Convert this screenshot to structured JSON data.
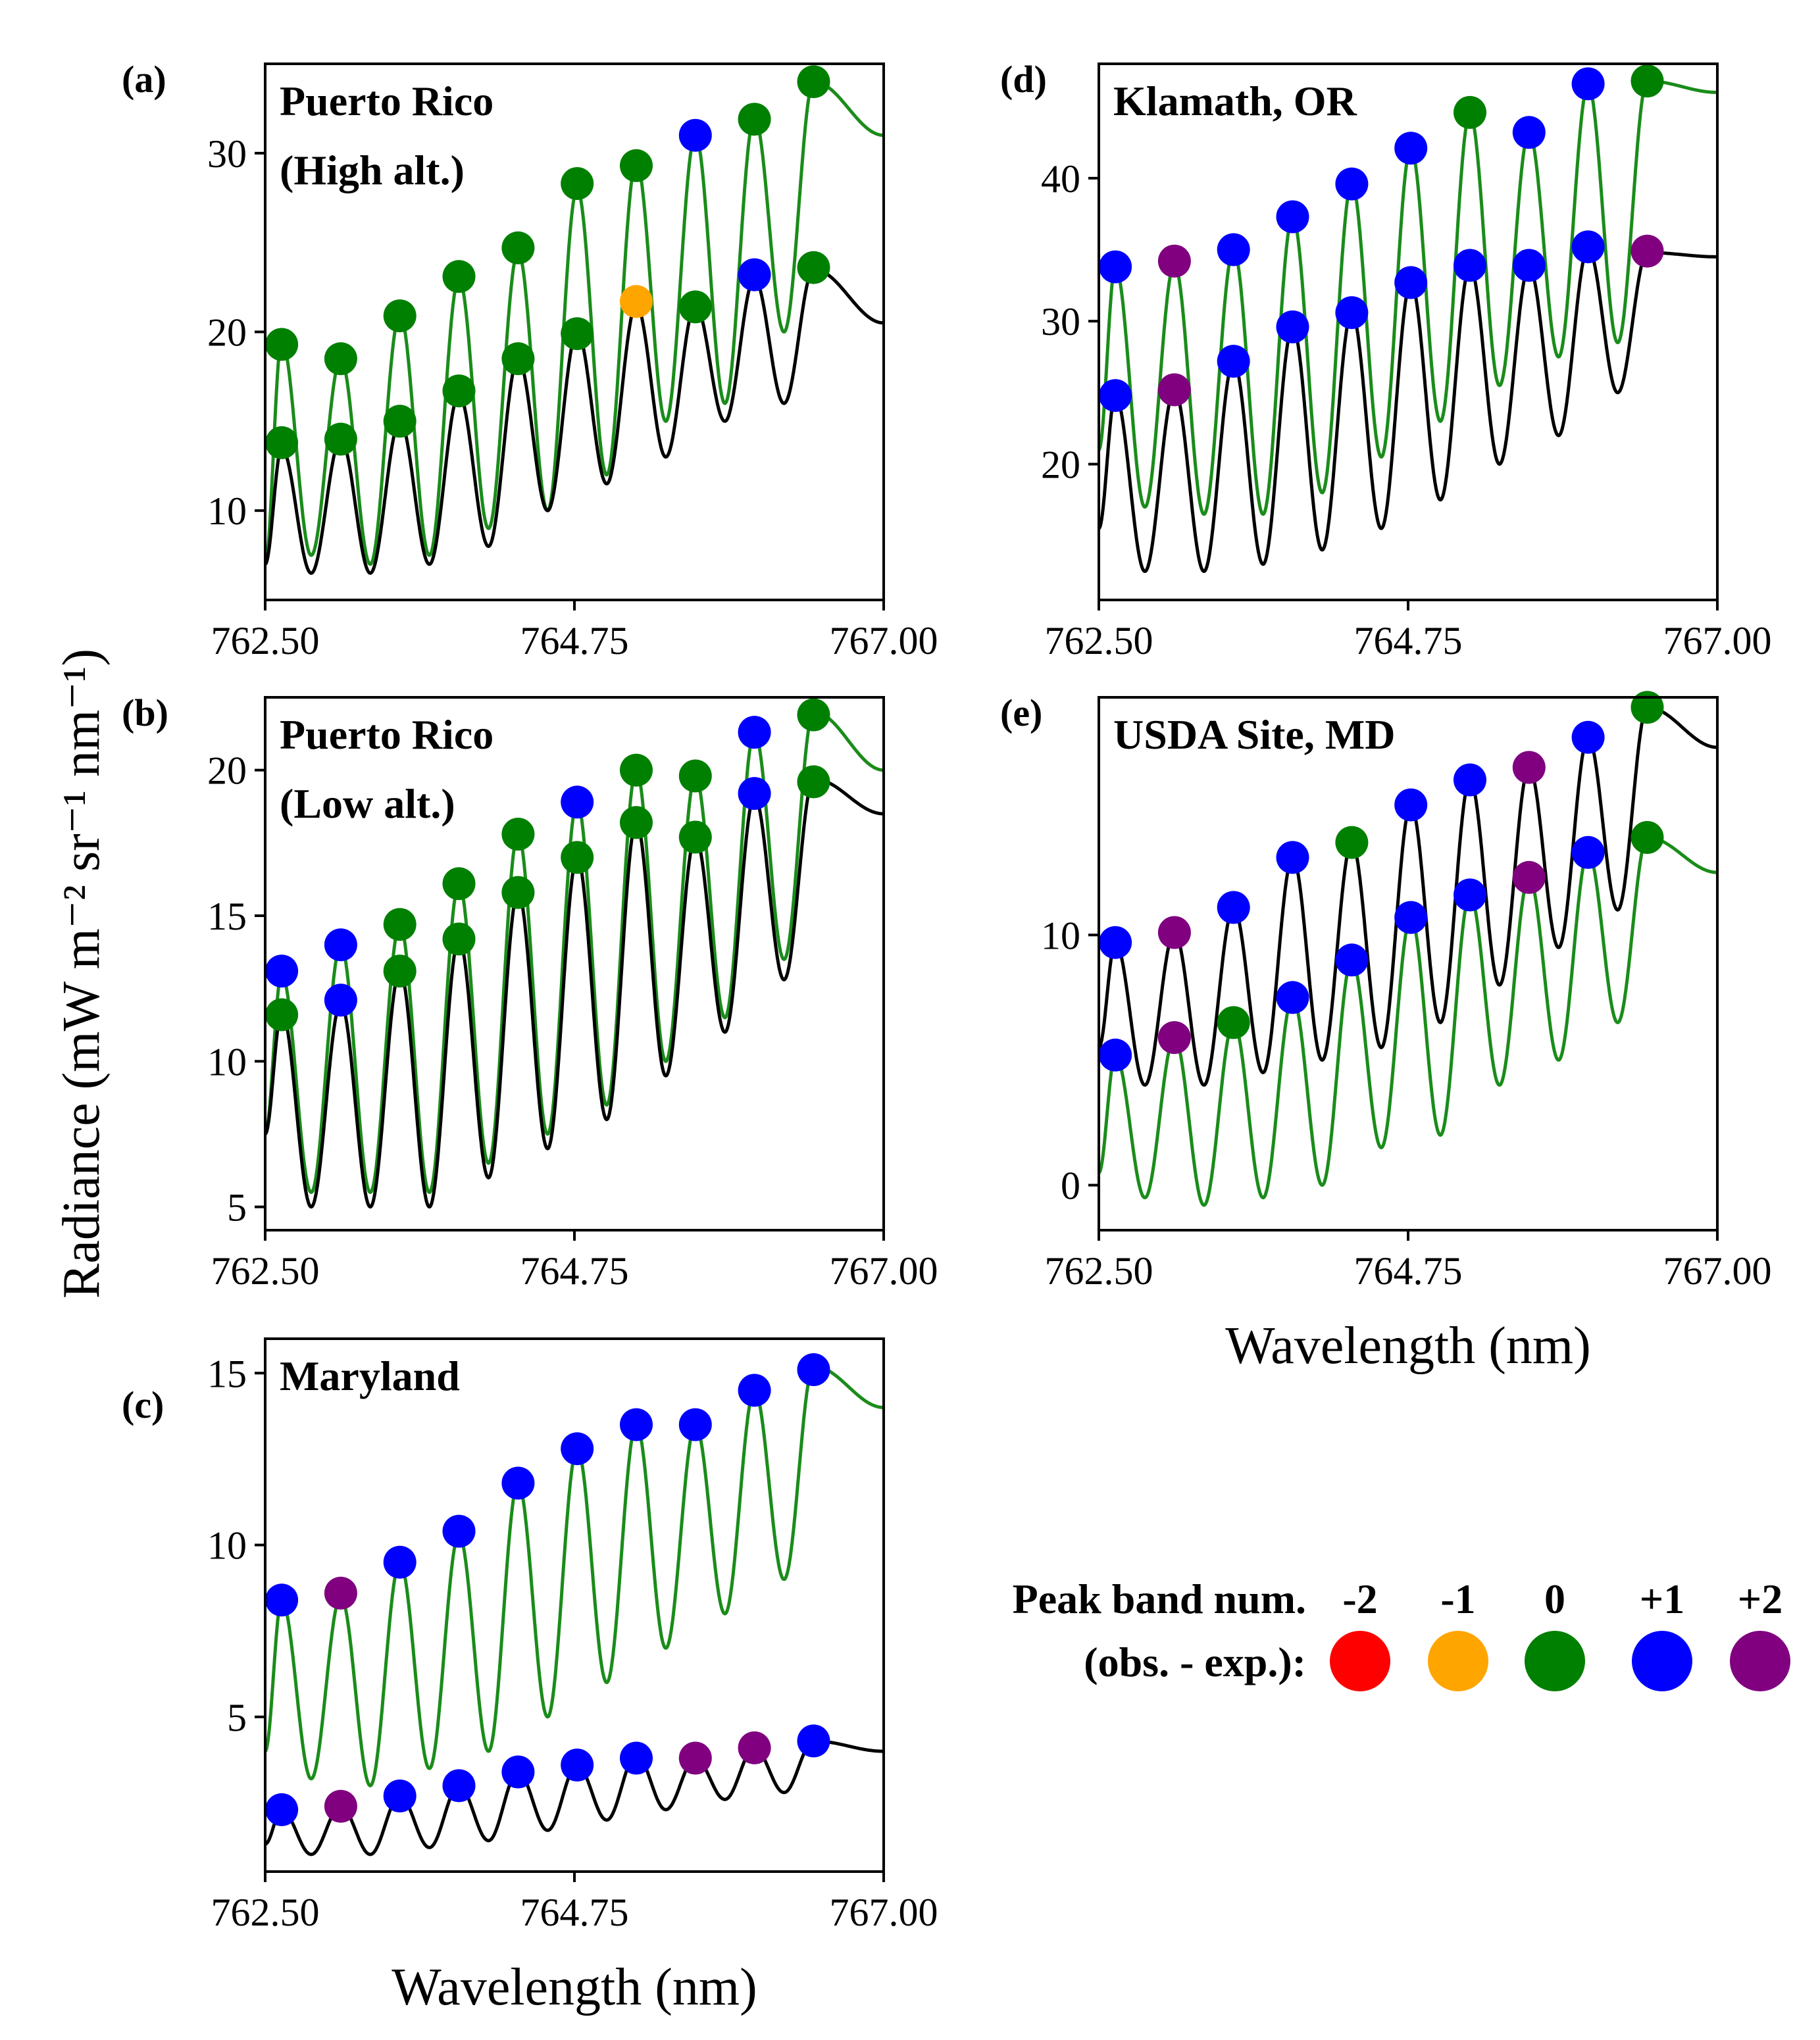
{
  "figure": {
    "ylabel": "Radiance (mW m⁻² sr⁻¹ nm⁻¹)",
    "legend": {
      "title_line1": "Peak band num.",
      "title_line2": "(obs. - exp.):",
      "entries": [
        {
          "label": "-2",
          "color": "#ff0000"
        },
        {
          "label": "-1",
          "color": "#ffa500"
        },
        {
          "label": "0",
          "color": "#008000"
        },
        {
          "label": "+1",
          "color": "#0000ff"
        },
        {
          "label": "+2",
          "color": "#800080"
        }
      ]
    }
  },
  "chart_data": [
    {
      "type": "line",
      "id": "a",
      "letter": "(a)",
      "title_lines": [
        "Puerto Rico",
        "(High alt.)"
      ],
      "xlabel": "",
      "xlim": [
        762.5,
        767.0
      ],
      "ylim": [
        5,
        35
      ],
      "xticks": [
        762.5,
        764.75,
        767.0
      ],
      "xtick_labels": [
        "762.50",
        "764.75",
        "767.00"
      ],
      "yticks": [
        10,
        20,
        30
      ],
      "ytick_labels": [
        "10",
        "20",
        "30"
      ],
      "series": [
        {
          "name": "green",
          "color": "#1a8c1a",
          "x0": 762.5,
          "x1": 767.0,
          "period": 0.43,
          "phase": 762.62,
          "peaks": [
            19.5,
            18.5,
            21.0,
            23.0,
            24.5,
            28.0,
            29.5,
            31.0,
            32.0,
            34.0
          ],
          "troughs": [
            7.0,
            7.5,
            7.0,
            7.5,
            9.0,
            10.0,
            12.0,
            15.0,
            16.0,
            20.0,
            31.0
          ]
        },
        {
          "name": "black",
          "color": "#000000",
          "x0": 762.5,
          "x1": 767.0,
          "period": 0.43,
          "phase": 762.62,
          "peaks": [
            13.5,
            14.0,
            15.0,
            16.5,
            18.5,
            20.0,
            21.5,
            21.5,
            23.0,
            23.5
          ],
          "troughs": [
            7.0,
            6.5,
            6.5,
            7.0,
            8.0,
            10.0,
            11.5,
            13.0,
            15.0,
            16.0,
            20.5
          ]
        }
      ],
      "markers": [
        {
          "x": 762.62,
          "y": 19.3,
          "cat": "0"
        },
        {
          "x": 763.05,
          "y": 18.5,
          "cat": "0"
        },
        {
          "x": 763.48,
          "y": 20.9,
          "cat": "0"
        },
        {
          "x": 763.91,
          "y": 23.1,
          "cat": "0"
        },
        {
          "x": 764.34,
          "y": 24.7,
          "cat": "0"
        },
        {
          "x": 764.77,
          "y": 28.3,
          "cat": "0"
        },
        {
          "x": 765.2,
          "y": 29.3,
          "cat": "0"
        },
        {
          "x": 765.63,
          "y": 31.0,
          "cat": "+1"
        },
        {
          "x": 766.06,
          "y": 31.9,
          "cat": "0"
        },
        {
          "x": 766.49,
          "y": 34.0,
          "cat": "0"
        },
        {
          "x": 762.62,
          "y": 13.8,
          "cat": "0"
        },
        {
          "x": 763.05,
          "y": 14.0,
          "cat": "0"
        },
        {
          "x": 763.48,
          "y": 15.0,
          "cat": "0"
        },
        {
          "x": 763.91,
          "y": 16.7,
          "cat": "0"
        },
        {
          "x": 764.34,
          "y": 18.5,
          "cat": "0"
        },
        {
          "x": 764.77,
          "y": 19.9,
          "cat": "0"
        },
        {
          "x": 765.2,
          "y": 21.7,
          "cat": "-1"
        },
        {
          "x": 765.63,
          "y": 21.4,
          "cat": "0"
        },
        {
          "x": 766.06,
          "y": 23.2,
          "cat": "+1"
        },
        {
          "x": 766.49,
          "y": 23.6,
          "cat": "0"
        }
      ]
    },
    {
      "type": "line",
      "id": "b",
      "letter": "(b)",
      "title_lines": [
        "Puerto Rico",
        "(Low alt.)"
      ],
      "xlabel": "",
      "xlim": [
        762.5,
        767.0
      ],
      "ylim": [
        4.2,
        22.5
      ],
      "xticks": [
        762.5,
        764.75,
        767.0
      ],
      "xtick_labels": [
        "762.50",
        "764.75",
        "767.00"
      ],
      "yticks": [
        5,
        10,
        15,
        20
      ],
      "ytick_labels": [
        "5",
        "10",
        "15",
        "20"
      ],
      "series": [
        {
          "name": "green",
          "color": "#1a8c1a",
          "x0": 762.5,
          "x1": 767.0,
          "period": 0.43,
          "phase": 762.62,
          "peaks": [
            13.0,
            14.0,
            14.7,
            16.1,
            17.8,
            18.9,
            20.0,
            19.8,
            21.3,
            22.0
          ],
          "troughs": [
            7.5,
            5.5,
            5.5,
            5.5,
            6.5,
            7.5,
            8.5,
            10.0,
            11.5,
            13.5,
            20.0
          ]
        },
        {
          "name": "black",
          "color": "#000000",
          "x0": 762.5,
          "x1": 767.0,
          "period": 0.43,
          "phase": 762.62,
          "peaks": [
            11.7,
            12.0,
            13.1,
            14.2,
            15.8,
            17.0,
            18.2,
            17.7,
            19.1,
            19.7
          ],
          "troughs": [
            7.5,
            5.0,
            5.0,
            5.0,
            6.0,
            7.0,
            8.0,
            9.5,
            11.0,
            12.8,
            18.5
          ]
        }
      ],
      "markers": [
        {
          "x": 762.62,
          "y": 13.1,
          "cat": "+1"
        },
        {
          "x": 763.05,
          "y": 14.0,
          "cat": "+1"
        },
        {
          "x": 763.48,
          "y": 14.7,
          "cat": "0"
        },
        {
          "x": 763.91,
          "y": 16.1,
          "cat": "0"
        },
        {
          "x": 764.34,
          "y": 17.8,
          "cat": "0"
        },
        {
          "x": 764.77,
          "y": 18.9,
          "cat": "+1"
        },
        {
          "x": 765.2,
          "y": 20.0,
          "cat": "0"
        },
        {
          "x": 765.63,
          "y": 19.8,
          "cat": "0"
        },
        {
          "x": 766.06,
          "y": 21.3,
          "cat": "+1"
        },
        {
          "x": 766.49,
          "y": 21.9,
          "cat": "0"
        },
        {
          "x": 762.62,
          "y": 11.6,
          "cat": "0"
        },
        {
          "x": 763.05,
          "y": 12.1,
          "cat": "+1"
        },
        {
          "x": 763.48,
          "y": 13.1,
          "cat": "0"
        },
        {
          "x": 763.91,
          "y": 14.2,
          "cat": "0"
        },
        {
          "x": 764.34,
          "y": 15.8,
          "cat": "0"
        },
        {
          "x": 764.77,
          "y": 17.0,
          "cat": "0"
        },
        {
          "x": 765.2,
          "y": 18.2,
          "cat": "0"
        },
        {
          "x": 765.63,
          "y": 17.7,
          "cat": "0"
        },
        {
          "x": 766.06,
          "y": 19.2,
          "cat": "+1"
        },
        {
          "x": 766.49,
          "y": 19.6,
          "cat": "0"
        }
      ]
    },
    {
      "type": "line",
      "id": "c",
      "letter": "(c)",
      "title_lines": [
        "Maryland"
      ],
      "xlabel": "Wavelength (nm)",
      "xlim": [
        762.5,
        767.0
      ],
      "ylim": [
        0.5,
        16
      ],
      "xticks": [
        762.5,
        764.75,
        767.0
      ],
      "xtick_labels": [
        "762.50",
        "764.75",
        "767.00"
      ],
      "yticks": [
        5,
        10,
        15
      ],
      "ytick_labels": [
        "5",
        "10",
        "15"
      ],
      "series": [
        {
          "name": "green",
          "color": "#1a8c1a",
          "x0": 762.5,
          "x1": 767.0,
          "period": 0.43,
          "phase": 762.62,
          "peaks": [
            8.4,
            8.5,
            9.5,
            10.3,
            11.8,
            12.8,
            13.5,
            13.5,
            14.5,
            15.2
          ],
          "troughs": [
            4.0,
            3.2,
            3.0,
            3.5,
            4.0,
            5.0,
            6.0,
            7.0,
            8.0,
            9.0,
            14.0
          ]
        },
        {
          "name": "black",
          "color": "#000000",
          "x0": 762.5,
          "x1": 767.0,
          "period": 0.43,
          "phase": 762.62,
          "peaks": [
            2.3,
            2.4,
            2.7,
            3.0,
            3.4,
            3.6,
            3.9,
            3.8,
            4.1,
            4.3
          ],
          "troughs": [
            1.3,
            1.0,
            1.0,
            1.2,
            1.4,
            1.7,
            2.0,
            2.3,
            2.6,
            2.8,
            4.0
          ]
        }
      ],
      "markers": [
        {
          "x": 762.62,
          "y": 8.4,
          "cat": "+1"
        },
        {
          "x": 763.05,
          "y": 8.6,
          "cat": "+2"
        },
        {
          "x": 763.48,
          "y": 9.5,
          "cat": "+1"
        },
        {
          "x": 763.91,
          "y": 10.4,
          "cat": "+1"
        },
        {
          "x": 764.34,
          "y": 11.8,
          "cat": "+1"
        },
        {
          "x": 764.77,
          "y": 12.8,
          "cat": "+1"
        },
        {
          "x": 765.2,
          "y": 13.5,
          "cat": "+1"
        },
        {
          "x": 765.63,
          "y": 13.5,
          "cat": "+1"
        },
        {
          "x": 766.06,
          "y": 14.5,
          "cat": "+1"
        },
        {
          "x": 766.49,
          "y": 15.1,
          "cat": "+1"
        },
        {
          "x": 762.62,
          "y": 2.3,
          "cat": "+1"
        },
        {
          "x": 763.05,
          "y": 2.4,
          "cat": "+2"
        },
        {
          "x": 763.48,
          "y": 2.7,
          "cat": "+1"
        },
        {
          "x": 763.91,
          "y": 3.0,
          "cat": "+1"
        },
        {
          "x": 764.34,
          "y": 3.4,
          "cat": "+1"
        },
        {
          "x": 764.77,
          "y": 3.6,
          "cat": "+1"
        },
        {
          "x": 765.2,
          "y": 3.8,
          "cat": "+1"
        },
        {
          "x": 765.63,
          "y": 3.8,
          "cat": "+2"
        },
        {
          "x": 766.06,
          "y": 4.1,
          "cat": "+2"
        },
        {
          "x": 766.49,
          "y": 4.3,
          "cat": "+1"
        }
      ]
    },
    {
      "type": "line",
      "id": "d",
      "letter": "(d)",
      "title_lines": [
        "Klamath, OR"
      ],
      "xlabel": "",
      "xlim": [
        762.5,
        767.0
      ],
      "ylim": [
        10.5,
        48
      ],
      "xticks": [
        762.5,
        764.75,
        767.0
      ],
      "xtick_labels": [
        "762.50",
        "764.75",
        "767.00"
      ],
      "yticks": [
        20,
        30,
        40
      ],
      "ytick_labels": [
        "20",
        "30",
        "40"
      ],
      "series": [
        {
          "name": "green",
          "color": "#1a8c1a",
          "x0": 762.5,
          "x1": 767.0,
          "period": 0.43,
          "phase": 762.62,
          "peaks": [
            33.8,
            34.0,
            35.0,
            37.3,
            39.6,
            42.1,
            44.5,
            43.2,
            46.5,
            46.8
          ],
          "troughs": [
            21.0,
            17.0,
            16.5,
            16.5,
            18.0,
            20.5,
            23.0,
            25.5,
            27.5,
            28.5,
            46.0
          ]
        },
        {
          "name": "black",
          "color": "#000000",
          "x0": 762.5,
          "x1": 767.0,
          "period": 0.43,
          "phase": 762.62,
          "peaks": [
            24.8,
            25.2,
            27.2,
            29.6,
            30.6,
            32.7,
            33.8,
            33.8,
            35.1,
            34.8
          ],
          "troughs": [
            15.5,
            12.5,
            12.5,
            13.0,
            14.0,
            15.5,
            17.5,
            20.0,
            22.0,
            25.0,
            34.5
          ]
        }
      ],
      "markers": [
        {
          "x": 762.62,
          "y": 33.8,
          "cat": "+1"
        },
        {
          "x": 763.05,
          "y": 34.2,
          "cat": "+2"
        },
        {
          "x": 763.48,
          "y": 35.0,
          "cat": "+1"
        },
        {
          "x": 763.91,
          "y": 37.3,
          "cat": "+1"
        },
        {
          "x": 764.34,
          "y": 39.6,
          "cat": "+1"
        },
        {
          "x": 764.77,
          "y": 42.1,
          "cat": "+1"
        },
        {
          "x": 765.2,
          "y": 44.6,
          "cat": "0"
        },
        {
          "x": 765.63,
          "y": 43.2,
          "cat": "+1"
        },
        {
          "x": 766.06,
          "y": 46.6,
          "cat": "+1"
        },
        {
          "x": 766.49,
          "y": 46.8,
          "cat": "0"
        },
        {
          "x": 762.62,
          "y": 24.8,
          "cat": "+1"
        },
        {
          "x": 763.05,
          "y": 25.2,
          "cat": "+2"
        },
        {
          "x": 763.48,
          "y": 27.2,
          "cat": "+1"
        },
        {
          "x": 763.91,
          "y": 29.6,
          "cat": "+1"
        },
        {
          "x": 764.34,
          "y": 30.6,
          "cat": "+1"
        },
        {
          "x": 764.77,
          "y": 32.7,
          "cat": "+1"
        },
        {
          "x": 765.2,
          "y": 33.9,
          "cat": "+1"
        },
        {
          "x": 765.63,
          "y": 33.9,
          "cat": "+1"
        },
        {
          "x": 766.06,
          "y": 35.2,
          "cat": "+1"
        },
        {
          "x": 766.49,
          "y": 34.9,
          "cat": "+2"
        }
      ]
    },
    {
      "type": "line",
      "id": "e",
      "letter": "(e)",
      "title_lines": [
        "USDA Site, MD"
      ],
      "xlabel": "Wavelength (nm)",
      "xlim": [
        762.5,
        767.0
      ],
      "ylim": [
        -1.8,
        19.5
      ],
      "xticks": [
        762.5,
        764.75,
        767.0
      ],
      "xtick_labels": [
        "762.50",
        "764.75",
        "767.00"
      ],
      "yticks": [
        0,
        10
      ],
      "ytick_labels": [
        "0",
        "10"
      ],
      "series": [
        {
          "name": "black",
          "color": "#000000",
          "x0": 762.5,
          "x1": 767.0,
          "period": 0.43,
          "phase": 762.62,
          "peaks": [
            9.7,
            10.1,
            11.1,
            13.1,
            13.7,
            15.2,
            16.2,
            16.7,
            17.9,
            19.1
          ],
          "troughs": [
            5.5,
            4.0,
            4.0,
            4.5,
            5.0,
            5.5,
            6.5,
            8.0,
            9.5,
            11.0,
            17.5
          ]
        },
        {
          "name": "green",
          "color": "#1a8c1a",
          "x0": 762.5,
          "x1": 767.0,
          "period": 0.43,
          "phase": 762.62,
          "peaks": [
            5.2,
            5.9,
            6.5,
            7.5,
            9.0,
            10.7,
            11.6,
            12.3,
            13.3,
            13.9
          ],
          "troughs": [
            0.5,
            -0.5,
            -0.8,
            -0.5,
            0.0,
            1.5,
            2.0,
            4.0,
            5.0,
            6.5,
            12.5
          ]
        }
      ],
      "markers": [
        {
          "x": 762.62,
          "y": 9.7,
          "cat": "+1"
        },
        {
          "x": 763.05,
          "y": 10.1,
          "cat": "+2"
        },
        {
          "x": 763.48,
          "y": 11.1,
          "cat": "+1"
        },
        {
          "x": 763.91,
          "y": 13.1,
          "cat": "+1"
        },
        {
          "x": 764.34,
          "y": 13.7,
          "cat": "0"
        },
        {
          "x": 764.77,
          "y": 15.2,
          "cat": "+1"
        },
        {
          "x": 765.2,
          "y": 16.2,
          "cat": "+1"
        },
        {
          "x": 765.63,
          "y": 16.7,
          "cat": "+2"
        },
        {
          "x": 766.06,
          "y": 17.9,
          "cat": "+1"
        },
        {
          "x": 766.49,
          "y": 19.1,
          "cat": "0"
        },
        {
          "x": 762.62,
          "y": 5.2,
          "cat": "+1"
        },
        {
          "x": 763.05,
          "y": 5.9,
          "cat": "+2"
        },
        {
          "x": 763.48,
          "y": 6.5,
          "cat": "0"
        },
        {
          "x": 763.91,
          "y": 7.5,
          "cat": "+1"
        },
        {
          "x": 764.34,
          "y": 9.0,
          "cat": "+1"
        },
        {
          "x": 764.77,
          "y": 10.7,
          "cat": "+1"
        },
        {
          "x": 765.2,
          "y": 11.6,
          "cat": "+1"
        },
        {
          "x": 765.63,
          "y": 12.3,
          "cat": "+2"
        },
        {
          "x": 766.06,
          "y": 13.3,
          "cat": "+1"
        },
        {
          "x": 766.49,
          "y": 13.9,
          "cat": "0"
        }
      ]
    }
  ]
}
